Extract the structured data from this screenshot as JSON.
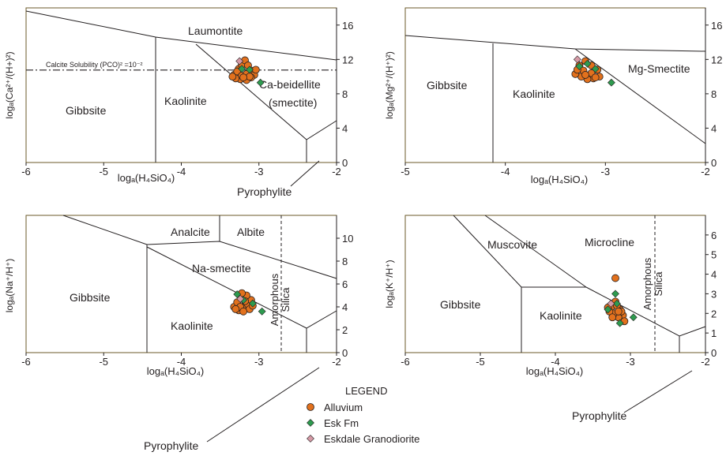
{
  "colors": {
    "alluvium": "#e2711d",
    "esk_fm": "#2e9b4f",
    "eskdale": "#d59aa6",
    "frame": "#6b5a2a"
  },
  "chart_data": [
    {
      "type": "scatter",
      "xlabel": "logₐ(H₄SiO₄)",
      "ylabel": "logₐ(Ca²⁺/(H+)²)",
      "xlim": [
        -6,
        -2
      ],
      "ylim": [
        0,
        18
      ],
      "x_ticks": [
        "-6",
        "-5",
        "-4",
        "-3",
        "-2"
      ],
      "y_ticks": [
        "0",
        "4",
        "8",
        "12",
        "16"
      ],
      "fields": [
        "Laumontite",
        "Gibbsite",
        "Kaolinite",
        "Ca-beidellite",
        "(smectite)",
        "Pyrophylite"
      ],
      "annotation": "Calcite Solubility (PCO)² =10⁻²",
      "calcite_line_y": 11.5,
      "series": [
        {
          "name": "Alluvium",
          "marker": "circle",
          "points": [
            [
              -3.32,
              10.2
            ],
            [
              -3.26,
              10.9
            ],
            [
              -3.22,
              11.4
            ],
            [
              -3.18,
              11.9
            ],
            [
              -3.14,
              11.3
            ],
            [
              -3.1,
              10.7
            ],
            [
              -3.06,
              10.2
            ],
            [
              -3.1,
              9.9
            ],
            [
              -3.16,
              9.6
            ],
            [
              -3.24,
              9.7
            ],
            [
              -3.3,
              9.8
            ],
            [
              -3.28,
              10.6
            ],
            [
              -3.22,
              10.1
            ],
            [
              -3.16,
              10.3
            ],
            [
              -3.04,
              10.8
            ],
            [
              -3.12,
              10.0
            ],
            [
              -3.2,
              9.9
            ],
            [
              -3.34,
              10.0
            ]
          ]
        },
        {
          "name": "Esk Fm",
          "marker": "diamond",
          "points": [
            [
              -3.22,
              10.9
            ],
            [
              -3.12,
              10.8
            ],
            [
              -2.98,
              9.3
            ]
          ]
        },
        {
          "name": "Eskdale Granodiorite",
          "marker": "diamond",
          "points": [
            [
              -3.25,
              11.8
            ]
          ]
        }
      ]
    },
    {
      "type": "scatter",
      "xlabel": "logₐ(H₄SiO₄)",
      "ylabel": "logₐ(Mg²⁺/(H⁺)²)",
      "xlim": [
        -5,
        -2
      ],
      "ylim": [
        0,
        18
      ],
      "x_ticks": [
        "-5",
        "-4",
        "-3",
        "-2"
      ],
      "y_ticks": [
        "0",
        "4",
        "8",
        "12",
        "16"
      ],
      "fields": [
        "Gibbsite",
        "Kaolinite",
        "Mg-Smectite"
      ],
      "series": [
        {
          "name": "Alluvium",
          "marker": "circle",
          "points": [
            [
              -3.26,
              11.3
            ],
            [
              -3.2,
              11.8
            ],
            [
              -3.14,
              11.3
            ],
            [
              -3.08,
              10.8
            ],
            [
              -3.06,
              10.0
            ],
            [
              -3.12,
              9.8
            ],
            [
              -3.18,
              9.7
            ],
            [
              -3.24,
              10.0
            ],
            [
              -3.3,
              10.3
            ],
            [
              -3.22,
              10.7
            ],
            [
              -3.14,
              10.4
            ],
            [
              -3.28,
              10.8
            ],
            [
              -3.1,
              9.9
            ],
            [
              -3.2,
              10.2
            ]
          ]
        },
        {
          "name": "Esk Fm",
          "marker": "diamond",
          "points": [
            [
              -3.26,
              11.2
            ],
            [
              -3.18,
              11.5
            ],
            [
              -3.1,
              10.9
            ],
            [
              -2.94,
              9.3
            ]
          ]
        },
        {
          "name": "Eskdale Granodiorite",
          "marker": "diamond",
          "points": [
            [
              -3.28,
              12.0
            ]
          ]
        }
      ]
    },
    {
      "type": "scatter",
      "xlabel": "logₐ(H₄SiO₄)",
      "ylabel": "logₐ(Na⁺/H⁺)",
      "xlim": [
        -6,
        -2
      ],
      "ylim": [
        0,
        12
      ],
      "x_ticks": [
        "-6",
        "-5",
        "-4",
        "-3",
        "-2"
      ],
      "y_ticks": [
        "0",
        "2",
        "4",
        "6",
        "8",
        "10"
      ],
      "fields": [
        "Analcite",
        "Albite",
        "Na-smectite",
        "Gibbsite",
        "Kaolinite",
        "Amorphous",
        "Silica",
        "Pyrophylite"
      ],
      "series": [
        {
          "name": "Alluvium",
          "marker": "circle",
          "points": [
            [
              -3.32,
              4.0
            ],
            [
              -3.26,
              3.7
            ],
            [
              -3.2,
              3.9
            ],
            [
              -3.14,
              4.2
            ],
            [
              -3.1,
              4.6
            ],
            [
              -3.16,
              5.0
            ],
            [
              -3.22,
              5.2
            ],
            [
              -3.28,
              4.4
            ],
            [
              -3.18,
              4.5
            ],
            [
              -3.24,
              4.0
            ],
            [
              -3.12,
              3.8
            ],
            [
              -3.3,
              3.8
            ],
            [
              -3.08,
              4.1
            ],
            [
              -3.2,
              3.6
            ]
          ]
        },
        {
          "name": "Esk Fm",
          "marker": "diamond",
          "points": [
            [
              -3.28,
              5.1
            ],
            [
              -3.2,
              4.6
            ],
            [
              -3.08,
              4.3
            ],
            [
              -2.96,
              3.6
            ]
          ]
        },
        {
          "name": "Eskdale Granodiorite",
          "marker": "diamond",
          "points": [
            [
              -3.24,
              4.7
            ]
          ]
        }
      ]
    },
    {
      "type": "scatter",
      "xlabel": "logₐ(H₄SiO₄)",
      "ylabel": "logₐ(K⁺/H⁺)",
      "xlim": [
        -6,
        -2
      ],
      "ylim": [
        0,
        7
      ],
      "x_ticks": [
        "-6",
        "-5",
        "-4",
        "-3",
        "-2"
      ],
      "y_ticks": [
        "0",
        "1",
        "2",
        "3",
        "4",
        "5",
        "6"
      ],
      "fields": [
        "Muscovite",
        "Microcline",
        "Gibbsite",
        "Kaolinite",
        "Amorphous",
        "Silica",
        "Pyrophylite"
      ],
      "series": [
        {
          "name": "Alluvium",
          "marker": "circle",
          "points": [
            [
              -3.2,
              3.8
            ],
            [
              -3.26,
              2.3
            ],
            [
              -3.2,
              2.6
            ],
            [
              -3.14,
              2.2
            ],
            [
              -3.1,
              1.9
            ],
            [
              -3.16,
              1.8
            ],
            [
              -3.22,
              2.0
            ],
            [
              -3.28,
              2.1
            ],
            [
              -3.18,
              2.4
            ],
            [
              -3.12,
              2.1
            ],
            [
              -3.24,
              1.8
            ],
            [
              -3.08,
              1.6
            ],
            [
              -3.3,
              2.3
            ],
            [
              -3.16,
              2.1
            ]
          ]
        },
        {
          "name": "Esk Fm",
          "marker": "diamond",
          "points": [
            [
              -3.2,
              3.0
            ],
            [
              -3.18,
              2.5
            ],
            [
              -3.3,
              2.2
            ],
            [
              -3.14,
              1.5
            ],
            [
              -2.96,
              1.8
            ]
          ]
        },
        {
          "name": "Eskdale Granodiorite",
          "marker": "diamond",
          "points": [
            [
              -3.26,
              2.5
            ]
          ]
        }
      ]
    }
  ],
  "legend": {
    "title": "LEGEND",
    "items": [
      "Alluvium",
      "Esk Fm",
      "Eskdale Granodiorite"
    ]
  }
}
